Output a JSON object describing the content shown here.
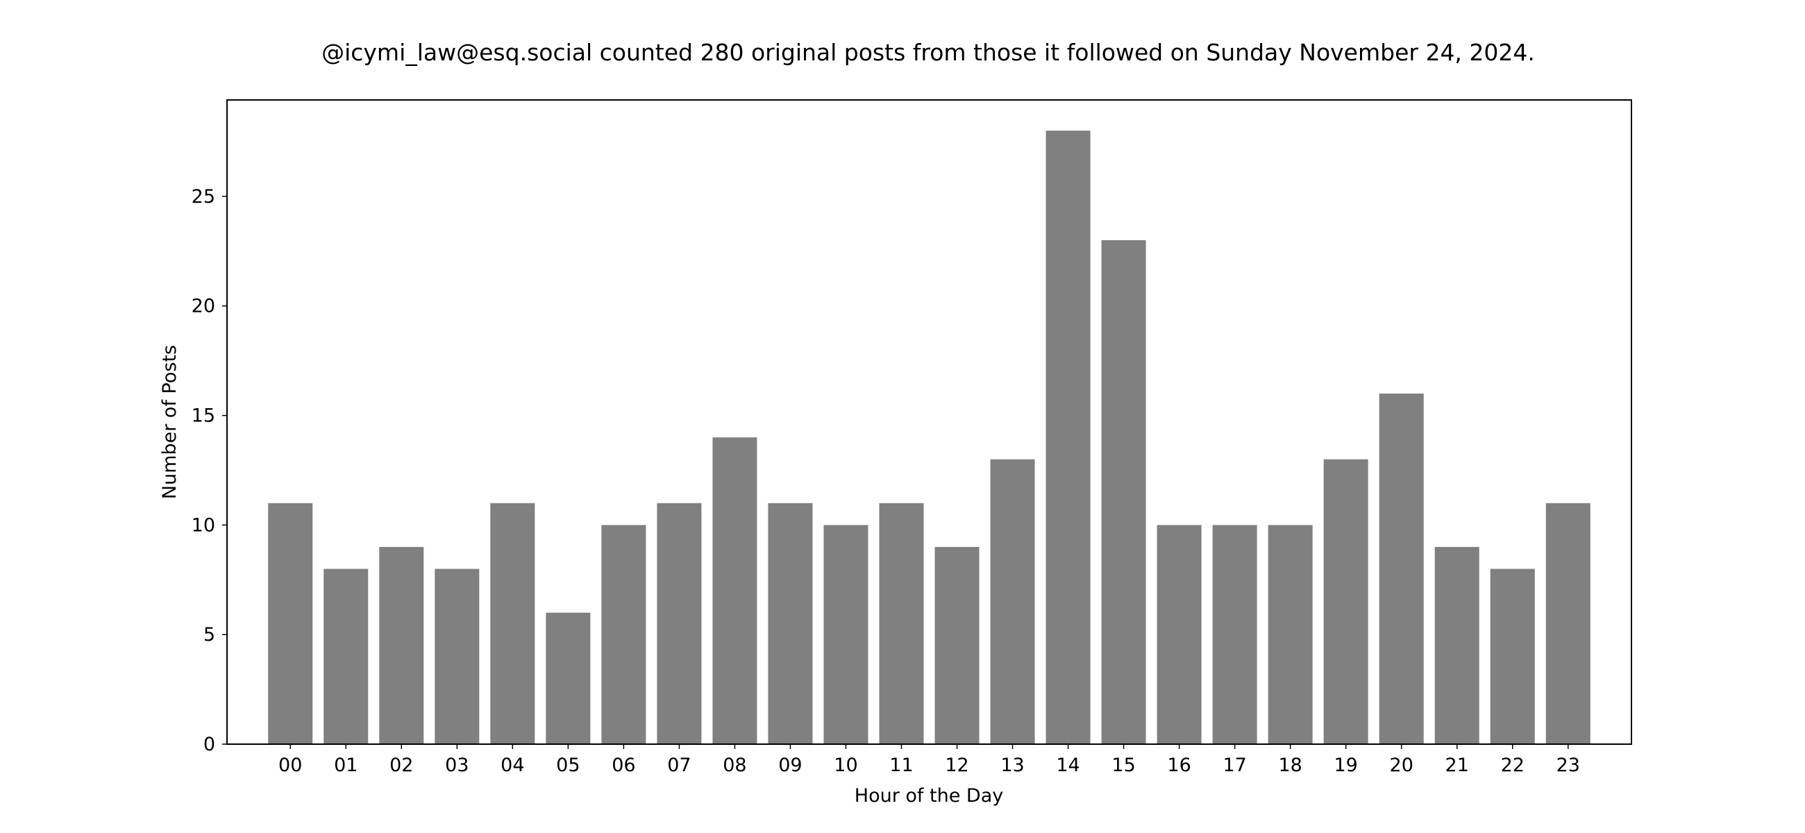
{
  "chart_data": {
    "type": "bar",
    "title": "@icymi_law@esq.social counted 280 original posts from those it followed on Sunday November 24, 2024.",
    "xlabel": "Hour of the Day",
    "ylabel": "Number of Posts",
    "categories": [
      "00",
      "01",
      "02",
      "03",
      "04",
      "05",
      "06",
      "07",
      "08",
      "09",
      "10",
      "11",
      "12",
      "13",
      "14",
      "15",
      "16",
      "17",
      "18",
      "19",
      "20",
      "21",
      "22",
      "23"
    ],
    "values": [
      11,
      8,
      9,
      8,
      11,
      6,
      10,
      11,
      14,
      11,
      10,
      11,
      9,
      13,
      28,
      23,
      10,
      10,
      10,
      13,
      16,
      9,
      8,
      11
    ],
    "yticks": [
      0,
      5,
      10,
      15,
      20,
      25
    ],
    "ylim": [
      0,
      29.4
    ],
    "bar_color": "#808080",
    "grid": false,
    "legend": "none"
  }
}
